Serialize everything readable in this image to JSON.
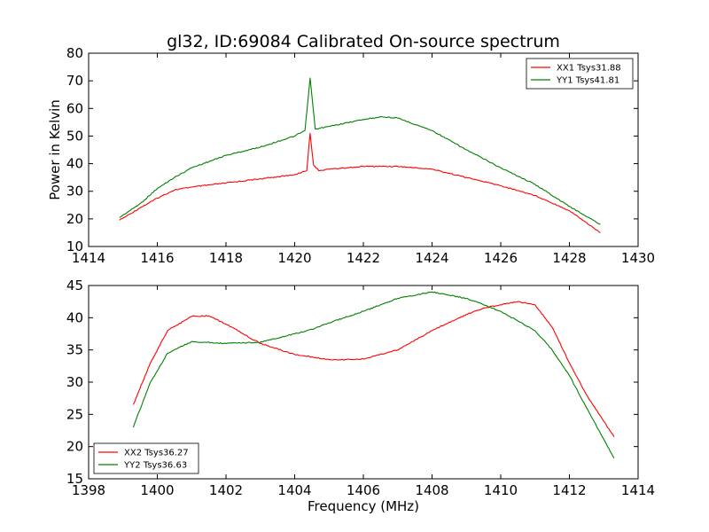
{
  "figure": {
    "title": "gl32, ID:69084 Calibrated On-source spectrum",
    "ylabel": "Power in Kelvin",
    "xlabel": "Frequency (MHz)"
  },
  "chart_data": [
    {
      "type": "line",
      "title": "gl32, ID:69084 Calibrated On-source spectrum",
      "xlabel": "",
      "ylabel": "Power in Kelvin",
      "xlim": [
        1414,
        1430
      ],
      "ylim": [
        10,
        80
      ],
      "xticks": [
        1414,
        1416,
        1418,
        1420,
        1422,
        1424,
        1426,
        1428,
        1430
      ],
      "yticks": [
        10,
        20,
        30,
        40,
        50,
        60,
        70,
        80
      ],
      "legend_position": "top-right",
      "grid": false,
      "series": [
        {
          "name": "XX1 Tsys31.88",
          "color": "#ff0000",
          "x": [
            1414.9,
            1415.5,
            1416.0,
            1416.5,
            1417.0,
            1418.0,
            1419.0,
            1420.0,
            1420.35,
            1420.45,
            1420.55,
            1420.7,
            1421.0,
            1422.0,
            1423.0,
            1424.0,
            1425.0,
            1426.0,
            1427.0,
            1428.0,
            1428.9
          ],
          "y": [
            19.5,
            24.0,
            27.5,
            30.5,
            31.5,
            33.0,
            34.5,
            36.0,
            37.5,
            51.0,
            39.5,
            37.5,
            38.0,
            39.0,
            39.0,
            38.0,
            35.0,
            32.0,
            28.5,
            23.0,
            15.0
          ]
        },
        {
          "name": "YY1 Tsys41.81",
          "color": "#008000",
          "x": [
            1414.9,
            1415.5,
            1416.0,
            1416.5,
            1417.0,
            1418.0,
            1419.0,
            1420.0,
            1420.3,
            1420.45,
            1420.6,
            1421.0,
            1422.0,
            1422.5,
            1423.0,
            1424.0,
            1425.0,
            1426.0,
            1427.0,
            1428.0,
            1428.9
          ],
          "y": [
            20.5,
            25.5,
            31.0,
            35.0,
            38.5,
            43.0,
            46.0,
            50.0,
            52.0,
            71.0,
            52.5,
            53.5,
            56.0,
            57.0,
            56.5,
            52.0,
            45.0,
            38.5,
            32.5,
            24.5,
            18.0
          ]
        }
      ]
    },
    {
      "type": "line",
      "title": "",
      "xlabel": "Frequency (MHz)",
      "ylabel": "",
      "xlim": [
        1398,
        1414
      ],
      "ylim": [
        15,
        45
      ],
      "xticks": [
        1398,
        1400,
        1402,
        1404,
        1406,
        1408,
        1410,
        1412,
        1414
      ],
      "yticks": [
        15,
        20,
        25,
        30,
        35,
        40,
        45
      ],
      "legend_position": "bottom-left",
      "grid": false,
      "series": [
        {
          "name": "XX2 Tsys36.27",
          "color": "#ff0000",
          "x": [
            1399.3,
            1399.8,
            1400.3,
            1401.0,
            1401.5,
            1402.0,
            1403.0,
            1404.0,
            1405.0,
            1405.5,
            1406.0,
            1407.0,
            1408.0,
            1409.0,
            1409.5,
            1410.0,
            1410.5,
            1411.0,
            1411.5,
            1412.0,
            1412.5,
            1413.3
          ],
          "y": [
            26.5,
            33.0,
            38.0,
            40.2,
            40.3,
            39.0,
            36.0,
            34.3,
            33.5,
            33.5,
            33.6,
            35.0,
            38.0,
            40.5,
            41.5,
            42.0,
            42.5,
            42.0,
            38.5,
            33.0,
            28.0,
            21.5
          ]
        },
        {
          "name": "YY2 Tsys36.63",
          "color": "#008000",
          "x": [
            1399.3,
            1399.8,
            1400.3,
            1401.0,
            1402.0,
            1403.0,
            1404.0,
            1404.5,
            1405.0,
            1406.0,
            1407.0,
            1408.0,
            1408.5,
            1409.0,
            1409.5,
            1410.0,
            1410.5,
            1411.0,
            1411.5,
            1412.0,
            1412.5,
            1413.3
          ],
          "y": [
            23.0,
            30.0,
            34.5,
            36.3,
            36.0,
            36.2,
            37.5,
            38.2,
            39.2,
            41.0,
            43.0,
            44.0,
            43.5,
            43.0,
            42.0,
            41.0,
            39.5,
            38.0,
            35.0,
            31.0,
            26.0,
            18.2
          ]
        }
      ]
    }
  ]
}
